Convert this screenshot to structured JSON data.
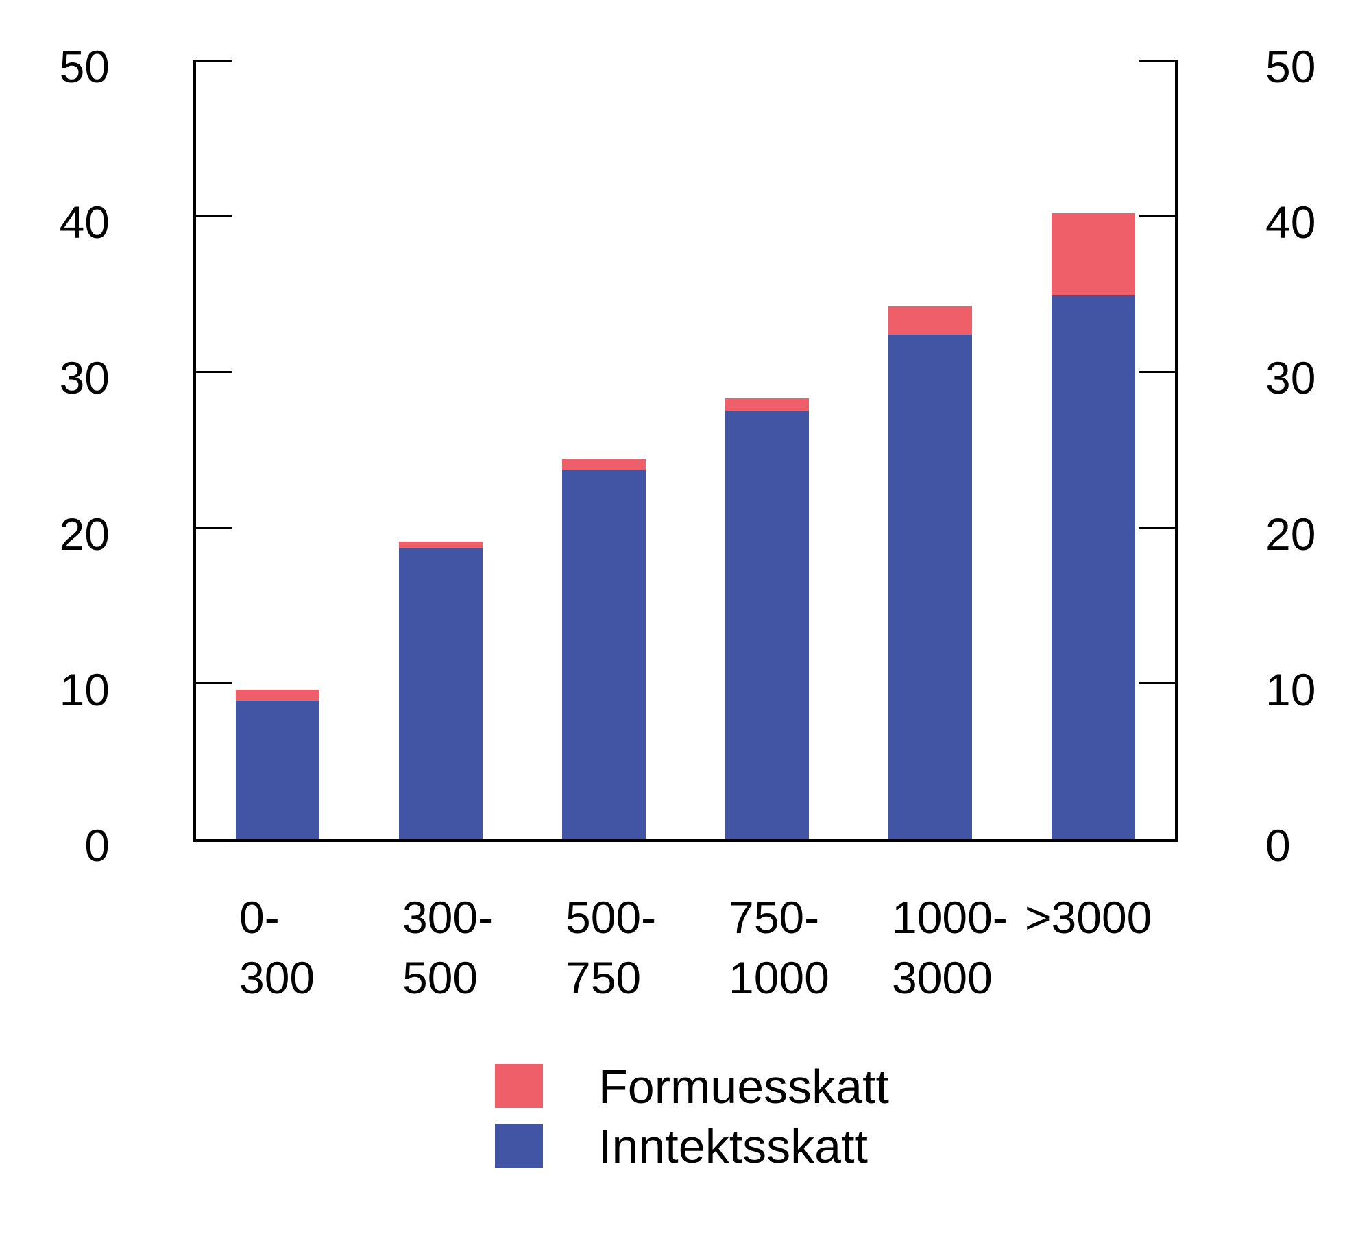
{
  "figure": {
    "background": "#ffffff",
    "axis_color": "#000000"
  },
  "chart_data": {
    "type": "bar",
    "stacked": true,
    "title": "",
    "xlabel": "",
    "ylabel": "",
    "categories": [
      "0-300",
      "300-500",
      "500-750",
      "750-1000",
      "1000-3000",
      ">3000"
    ],
    "category_tick_lines": [
      [
        "0-",
        "300"
      ],
      [
        "300-",
        "500"
      ],
      [
        "500-",
        "750"
      ],
      [
        "750-",
        "1000"
      ],
      [
        "1000-",
        "3000"
      ],
      [
        ">3000"
      ]
    ],
    "series": [
      {
        "name": "Inntektsskatt",
        "color": "#4255A4",
        "values": [
          8.9,
          18.7,
          23.7,
          27.5,
          32.4,
          34.9
        ]
      },
      {
        "name": "Formuesskatt",
        "color": "#EE5F69",
        "values": [
          0.7,
          0.4,
          0.7,
          0.8,
          1.8,
          5.3
        ]
      }
    ],
    "stack_totals": [
      9.6,
      19.1,
      24.4,
      28.3,
      34.2,
      40.2
    ],
    "y_axis": {
      "range": [
        0,
        50
      ],
      "ticks": [
        0,
        10,
        20,
        30,
        40,
        50
      ],
      "sides": [
        "left",
        "right"
      ],
      "tick_direction": "in"
    },
    "grid": false,
    "legend_position": "bottom-center",
    "legend_order": [
      "Formuesskatt",
      "Inntektsskatt"
    ]
  },
  "legend": [
    {
      "label": "Formuesskatt",
      "color": "#EE5F69"
    },
    {
      "label": "Inntektsskatt",
      "color": "#4255A4"
    }
  ]
}
